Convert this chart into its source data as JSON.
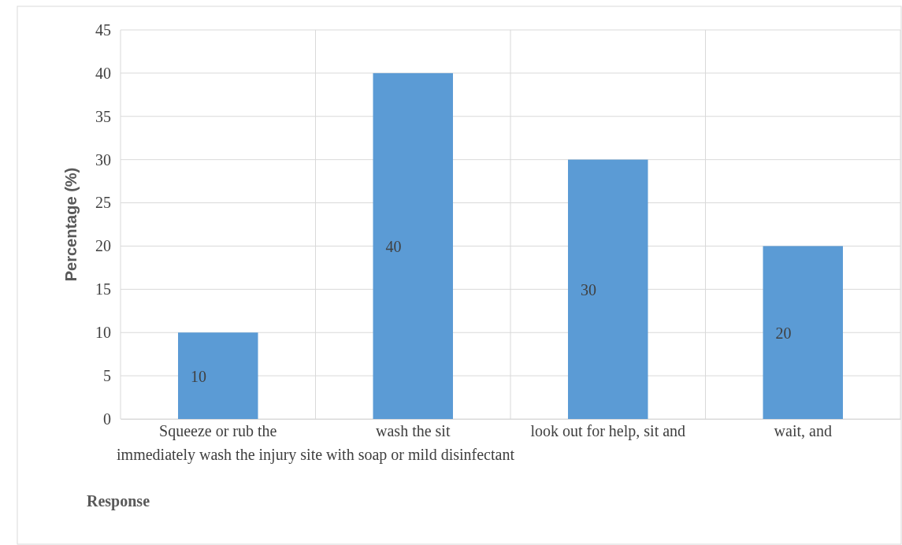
{
  "chart_data": {
    "type": "bar",
    "xlabel": "Response",
    "ylabel": "Percentage (%)",
    "categories": [
      "Squeeze or rub the",
      "wash the sit",
      "look out for help, sit and",
      "wait, and"
    ],
    "values": [
      10,
      40,
      30,
      20
    ],
    "color": "#5b9bd5",
    "data_labels": true,
    "ylim": [
      0,
      45
    ],
    "yticks": [
      0,
      5,
      10,
      15,
      20,
      25,
      30,
      35,
      40,
      45
    ],
    "grid": true,
    "annotations": [
      "immediately wash the injury site with soap or mild disinfectant"
    ]
  }
}
